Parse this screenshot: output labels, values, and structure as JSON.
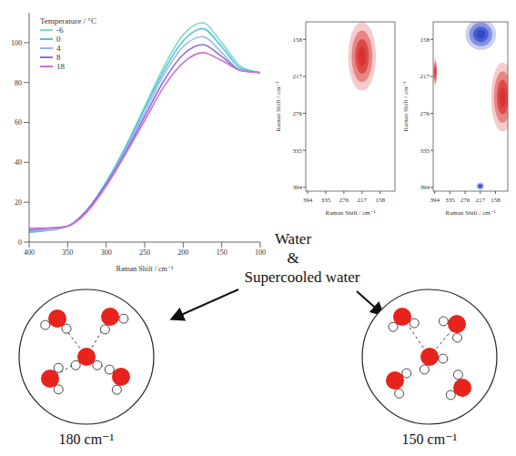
{
  "chart_data": {
    "type": "line",
    "legend_title": "Temperature / °C",
    "x_label": "Raman Shift / cm⁻¹",
    "x": [
      400,
      375,
      350,
      325,
      300,
      275,
      250,
      225,
      200,
      175,
      150,
      125,
      100
    ],
    "series": [
      {
        "name": "-6",
        "color": "#7ddcc4",
        "values": [
          5,
          6,
          8,
          16,
          30,
          48,
          68,
          88,
          104,
          110,
          100,
          88,
          85
        ]
      },
      {
        "name": "0",
        "color": "#4fc3e0",
        "values": [
          5,
          6,
          8,
          16,
          30,
          47,
          67,
          86,
          101,
          107,
          98,
          87,
          85
        ]
      },
      {
        "name": "4",
        "color": "#9ab8f0",
        "values": [
          6,
          6,
          8,
          16,
          29,
          46,
          65,
          84,
          98,
          103,
          95,
          86,
          85
        ]
      },
      {
        "name": "8",
        "color": "#8a6fd8",
        "values": [
          6,
          7,
          8,
          16,
          29,
          45,
          63,
          81,
          94,
          99,
          93,
          86,
          85
        ]
      },
      {
        "name": "18",
        "color": "#d070d8",
        "values": [
          7,
          7,
          8,
          15,
          28,
          44,
          61,
          78,
          90,
          95,
          91,
          86,
          85
        ]
      }
    ],
    "xlim": [
      400,
      100
    ],
    "xticks": [
      400,
      350,
      300,
      250,
      200,
      150,
      100
    ],
    "ylim": [
      0,
      115
    ],
    "yticks": [
      0,
      20,
      40,
      60,
      80,
      100
    ],
    "grid": false,
    "legend": "top-left"
  },
  "contour_panels": [
    {
      "x_label": "Raman Shift / cm⁻¹",
      "y_label": "Raman Shift / cm⁻¹",
      "xlim": [
        400,
        110
      ],
      "ylim": [
        130,
        400
      ],
      "xticks": [
        394,
        335,
        276,
        217,
        158
      ],
      "yticks": [
        158,
        217,
        276,
        335,
        394
      ],
      "contours": [
        {
          "x": 217,
          "y": 185,
          "rx": 45,
          "ry": 55,
          "color": "#d83030"
        }
      ]
    },
    {
      "x_label": "Raman Shift / cm⁻¹",
      "y_label": "Raman Shift / cm⁻¹",
      "xlim": [
        400,
        110
      ],
      "ylim": [
        130,
        400
      ],
      "xticks": [
        394,
        335,
        276,
        217,
        158
      ],
      "yticks": [
        158,
        217,
        276,
        335,
        394
      ],
      "contours": [
        {
          "x": 215,
          "y": 150,
          "rx": 60,
          "ry": 25,
          "color": "#3048c8"
        },
        {
          "x": 130,
          "y": 250,
          "rx": 45,
          "ry": 55,
          "color": "#d83030"
        },
        {
          "x": 217,
          "y": 392,
          "rx": 15,
          "ry": 6,
          "color": "#3048c8"
        },
        {
          "x": 392,
          "y": 210,
          "rx": 8,
          "ry": 22,
          "color": "#d83030"
        }
      ]
    }
  ],
  "center_text": [
    "Water",
    "&",
    "Supercooled water"
  ],
  "structures": [
    {
      "label": "180 cm⁻¹"
    },
    {
      "label": "150 cm⁻¹"
    }
  ]
}
